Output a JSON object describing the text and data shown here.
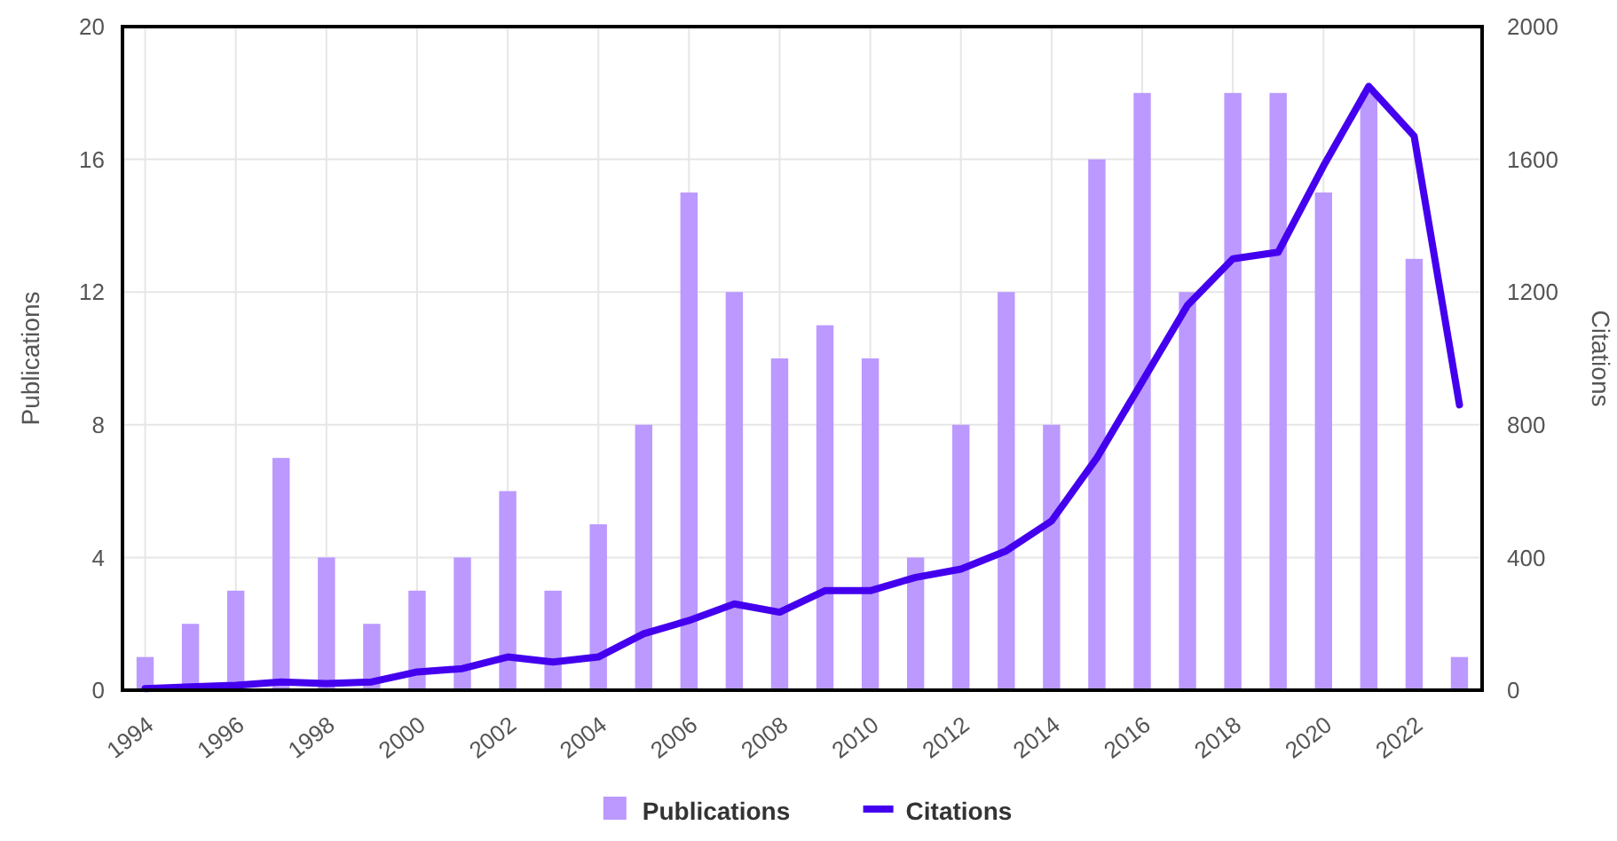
{
  "chart_data": {
    "type": "bar",
    "x": [
      1994,
      1995,
      1996,
      1997,
      1998,
      1999,
      2000,
      2001,
      2002,
      2003,
      2004,
      2005,
      2006,
      2007,
      2008,
      2009,
      2010,
      2011,
      2012,
      2013,
      2014,
      2015,
      2016,
      2017,
      2018,
      2019,
      2020,
      2021,
      2022,
      2023
    ],
    "series": [
      {
        "name": "Publications",
        "color": "#bb99ff",
        "values": [
          1,
          2,
          3,
          7,
          4,
          2,
          3,
          4,
          6,
          3,
          5,
          8,
          15,
          12,
          10,
          11,
          10,
          4,
          8,
          12,
          8,
          16,
          18,
          12,
          18,
          18,
          15,
          18,
          13,
          1
        ]
      },
      {
        "name": "Citations",
        "type": "line",
        "axis": "y2",
        "color": "#4400ee",
        "values": [
          5,
          10,
          15,
          25,
          20,
          25,
          55,
          65,
          100,
          85,
          100,
          170,
          210,
          260,
          235,
          300,
          300,
          340,
          365,
          420,
          510,
          700,
          930,
          1160,
          1300,
          1320,
          1580,
          1820,
          1670,
          860
        ]
      }
    ],
    "xlim": [
      1993.5,
      2023.5
    ],
    "xticks": [
      1994,
      1996,
      1998,
      2000,
      2002,
      2004,
      2006,
      2008,
      2010,
      2012,
      2014,
      2016,
      2018,
      2020,
      2022
    ],
    "ylim": [
      0,
      20
    ],
    "yticks": [
      0,
      4,
      8,
      12,
      16,
      20
    ],
    "y2lim": [
      0,
      2000
    ],
    "y2ticks": [
      0,
      400,
      800,
      1200,
      1600,
      2000
    ],
    "ylabel": "Publications",
    "y2label": "Citations",
    "grid": true,
    "legend": "bottom",
    "marker": "none",
    "line_style": "solid"
  }
}
